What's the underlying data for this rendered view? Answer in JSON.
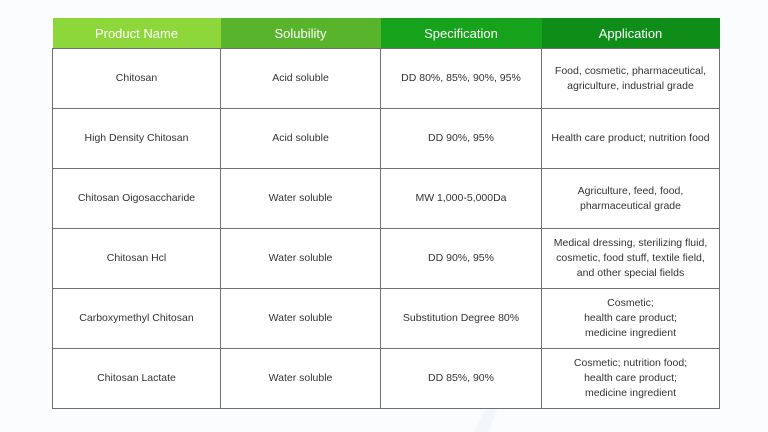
{
  "table": {
    "headers": [
      "Product Name",
      "Solubility",
      "Specification",
      "Application"
    ],
    "rows": [
      {
        "product": "Chitosan",
        "solubility": "Acid soluble",
        "specification": "DD 80%, 85%, 90%, 95%",
        "application": [
          "Food, cosmetic, pharmaceutical,",
          "agriculture, industrial grade"
        ]
      },
      {
        "product": "High Density Chitosan",
        "solubility": "Acid soluble",
        "specification": "DD 90%, 95%",
        "application": [
          "Health care product; nutrition food"
        ]
      },
      {
        "product": "Chitosan Oigosaccharide",
        "solubility": "Water soluble",
        "specification": "MW 1,000-5,000Da",
        "application": [
          "Agriculture, feed, food,",
          "pharmaceutical grade"
        ]
      },
      {
        "product": "Chitosan Hcl",
        "solubility": "Water soluble",
        "specification": "DD 90%, 95%",
        "application": [
          "Medical dressing, sterilizing fluid,",
          "cosmetic, food stuff, textile field,",
          "and other special fields"
        ]
      },
      {
        "product": "Carboxymethyl Chitosan",
        "solubility": "Water soluble",
        "specification": "Substitution Degree 80%",
        "application": [
          "Cosmetic;",
          "health care product;",
          "medicine ingredient"
        ]
      },
      {
        "product": "Chitosan Lactate",
        "solubility": "Water soluble",
        "specification": "DD 85%, 90%",
        "application": [
          "Cosmetic; nutrition food;",
          "health care product;",
          "medicine ingredient"
        ]
      }
    ]
  },
  "colors": {
    "header_1": "#8dd73a",
    "header_2": "#58b42a",
    "header_3": "#16a21b",
    "header_4": "#0e8d19",
    "border": "#6f6f6f"
  }
}
